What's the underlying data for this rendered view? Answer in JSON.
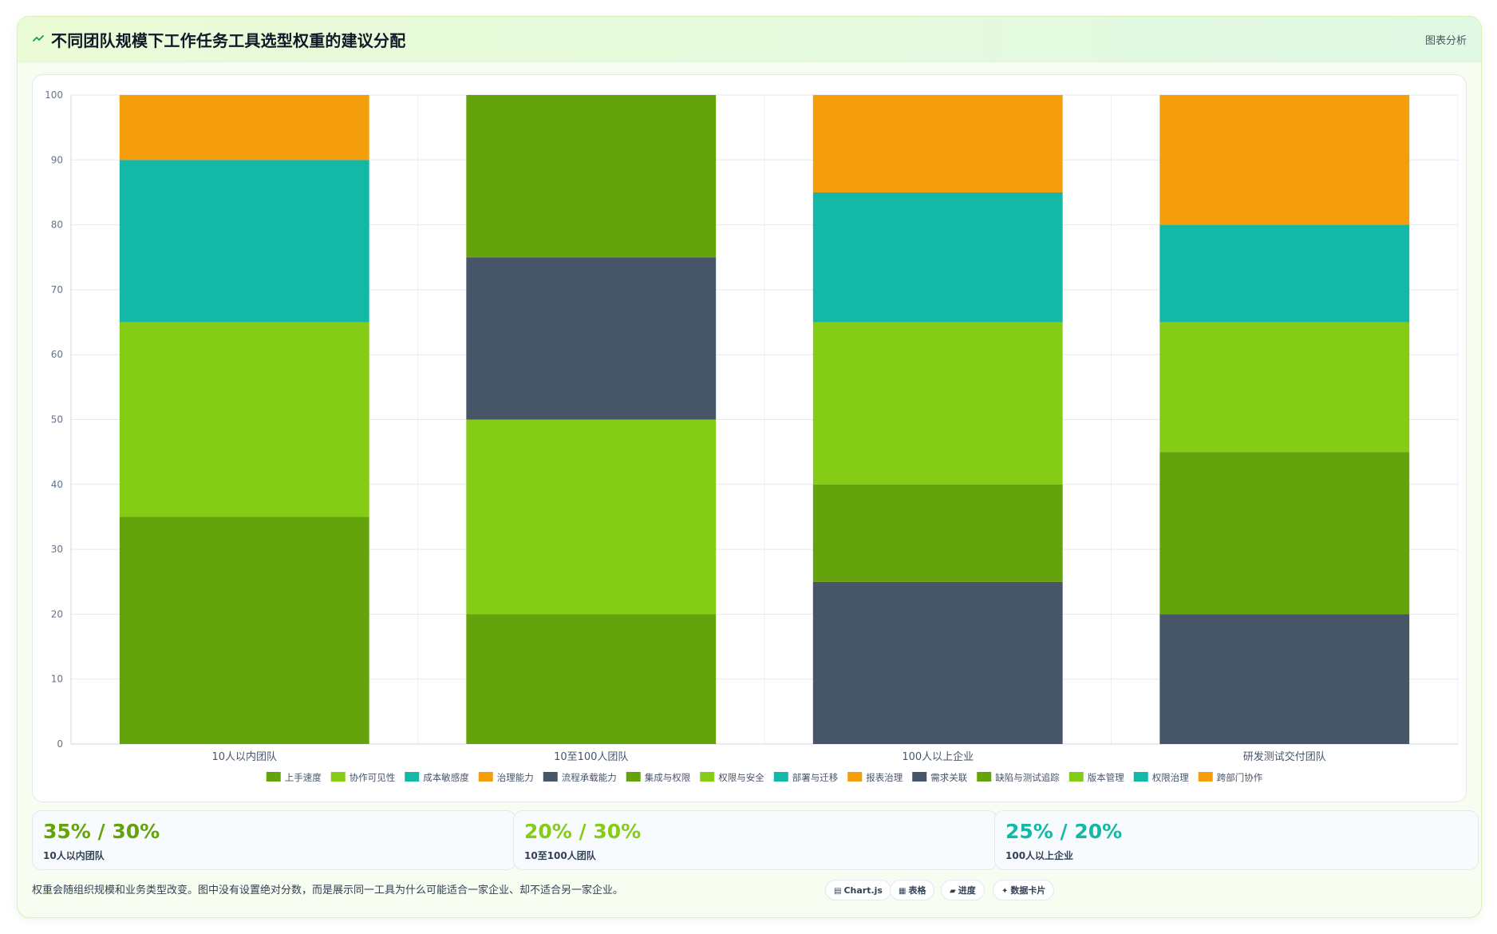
{
  "header": {
    "title": "不同团队规模下工作任务工具选型权重的建议分配",
    "action_label": "图表分析"
  },
  "chart_data": {
    "type": "bar",
    "stacked": true,
    "categories": [
      "10人以内团队",
      "10至100人团队",
      "100人以上企业",
      "研发测试交付团队"
    ],
    "ylim": [
      0,
      100
    ],
    "yticks": [
      0,
      10,
      20,
      30,
      40,
      50,
      60,
      70,
      80,
      90,
      100
    ],
    "grid": true,
    "legend_position": "bottom",
    "series": [
      {
        "name": "上手速度",
        "color": "#65a30d",
        "values": [
          35,
          0,
          0,
          0
        ]
      },
      {
        "name": "协作可见性",
        "color": "#84cc16",
        "values": [
          30,
          0,
          0,
          0
        ]
      },
      {
        "name": "成本敏感度",
        "color": "#14b8a6",
        "values": [
          25,
          0,
          0,
          0
        ]
      },
      {
        "name": "治理能力",
        "color": "#f59e0b",
        "values": [
          10,
          0,
          0,
          0
        ]
      },
      {
        "name": "流程承载能力",
        "color": "#475569",
        "values": [
          0,
          0,
          0,
          0
        ]
      },
      {
        "name": "集成与权限",
        "color": "#65a30d",
        "values": [
          0,
          20,
          0,
          0
        ]
      },
      {
        "name": "权限与安全",
        "color": "#84cc16",
        "values": [
          0,
          30,
          0,
          0
        ]
      },
      {
        "name": "部署与迁移",
        "color": "#14b8a6",
        "values": [
          0,
          0,
          0,
          0
        ]
      },
      {
        "name": "报表治理",
        "color": "#f59e0b",
        "values": [
          0,
          0,
          0,
          0
        ]
      },
      {
        "name": "需求关联",
        "color": "#475569",
        "values": [
          0,
          25,
          25,
          20
        ]
      },
      {
        "name": "缺陷与测试追踪",
        "color": "#65a30d",
        "values": [
          0,
          25,
          15,
          25
        ]
      },
      {
        "name": "版本管理",
        "color": "#84cc16",
        "values": [
          0,
          0,
          25,
          20
        ]
      },
      {
        "name": "权限治理",
        "color": "#14b8a6",
        "values": [
          0,
          0,
          20,
          15
        ]
      },
      {
        "name": "跨部门协作",
        "color": "#f59e0b",
        "values": [
          0,
          0,
          15,
          20
        ]
      }
    ]
  },
  "stats": [
    {
      "value": "35% / 30%",
      "label": "10人以内团队",
      "color": "#65a30d"
    },
    {
      "value": "20% / 30%",
      "label": "10至100人团队",
      "color": "#84cc16"
    },
    {
      "value": "25% / 20%",
      "label": "100人以上企业",
      "color": "#14b8a6"
    }
  ],
  "footnote": "权重会随组织规模和业务类型改变。图中没有设置绝对分数，而是展示同一工具为什么可能适合一家企业、却不适合另一家企业。",
  "chips": [
    {
      "label": "Chart.js",
      "icon": "chart-icon"
    },
    {
      "label": "表格",
      "icon": "table-icon"
    },
    {
      "label": "进度",
      "icon": "progress-icon"
    },
    {
      "label": "数据卡片",
      "icon": "card-icon"
    }
  ]
}
